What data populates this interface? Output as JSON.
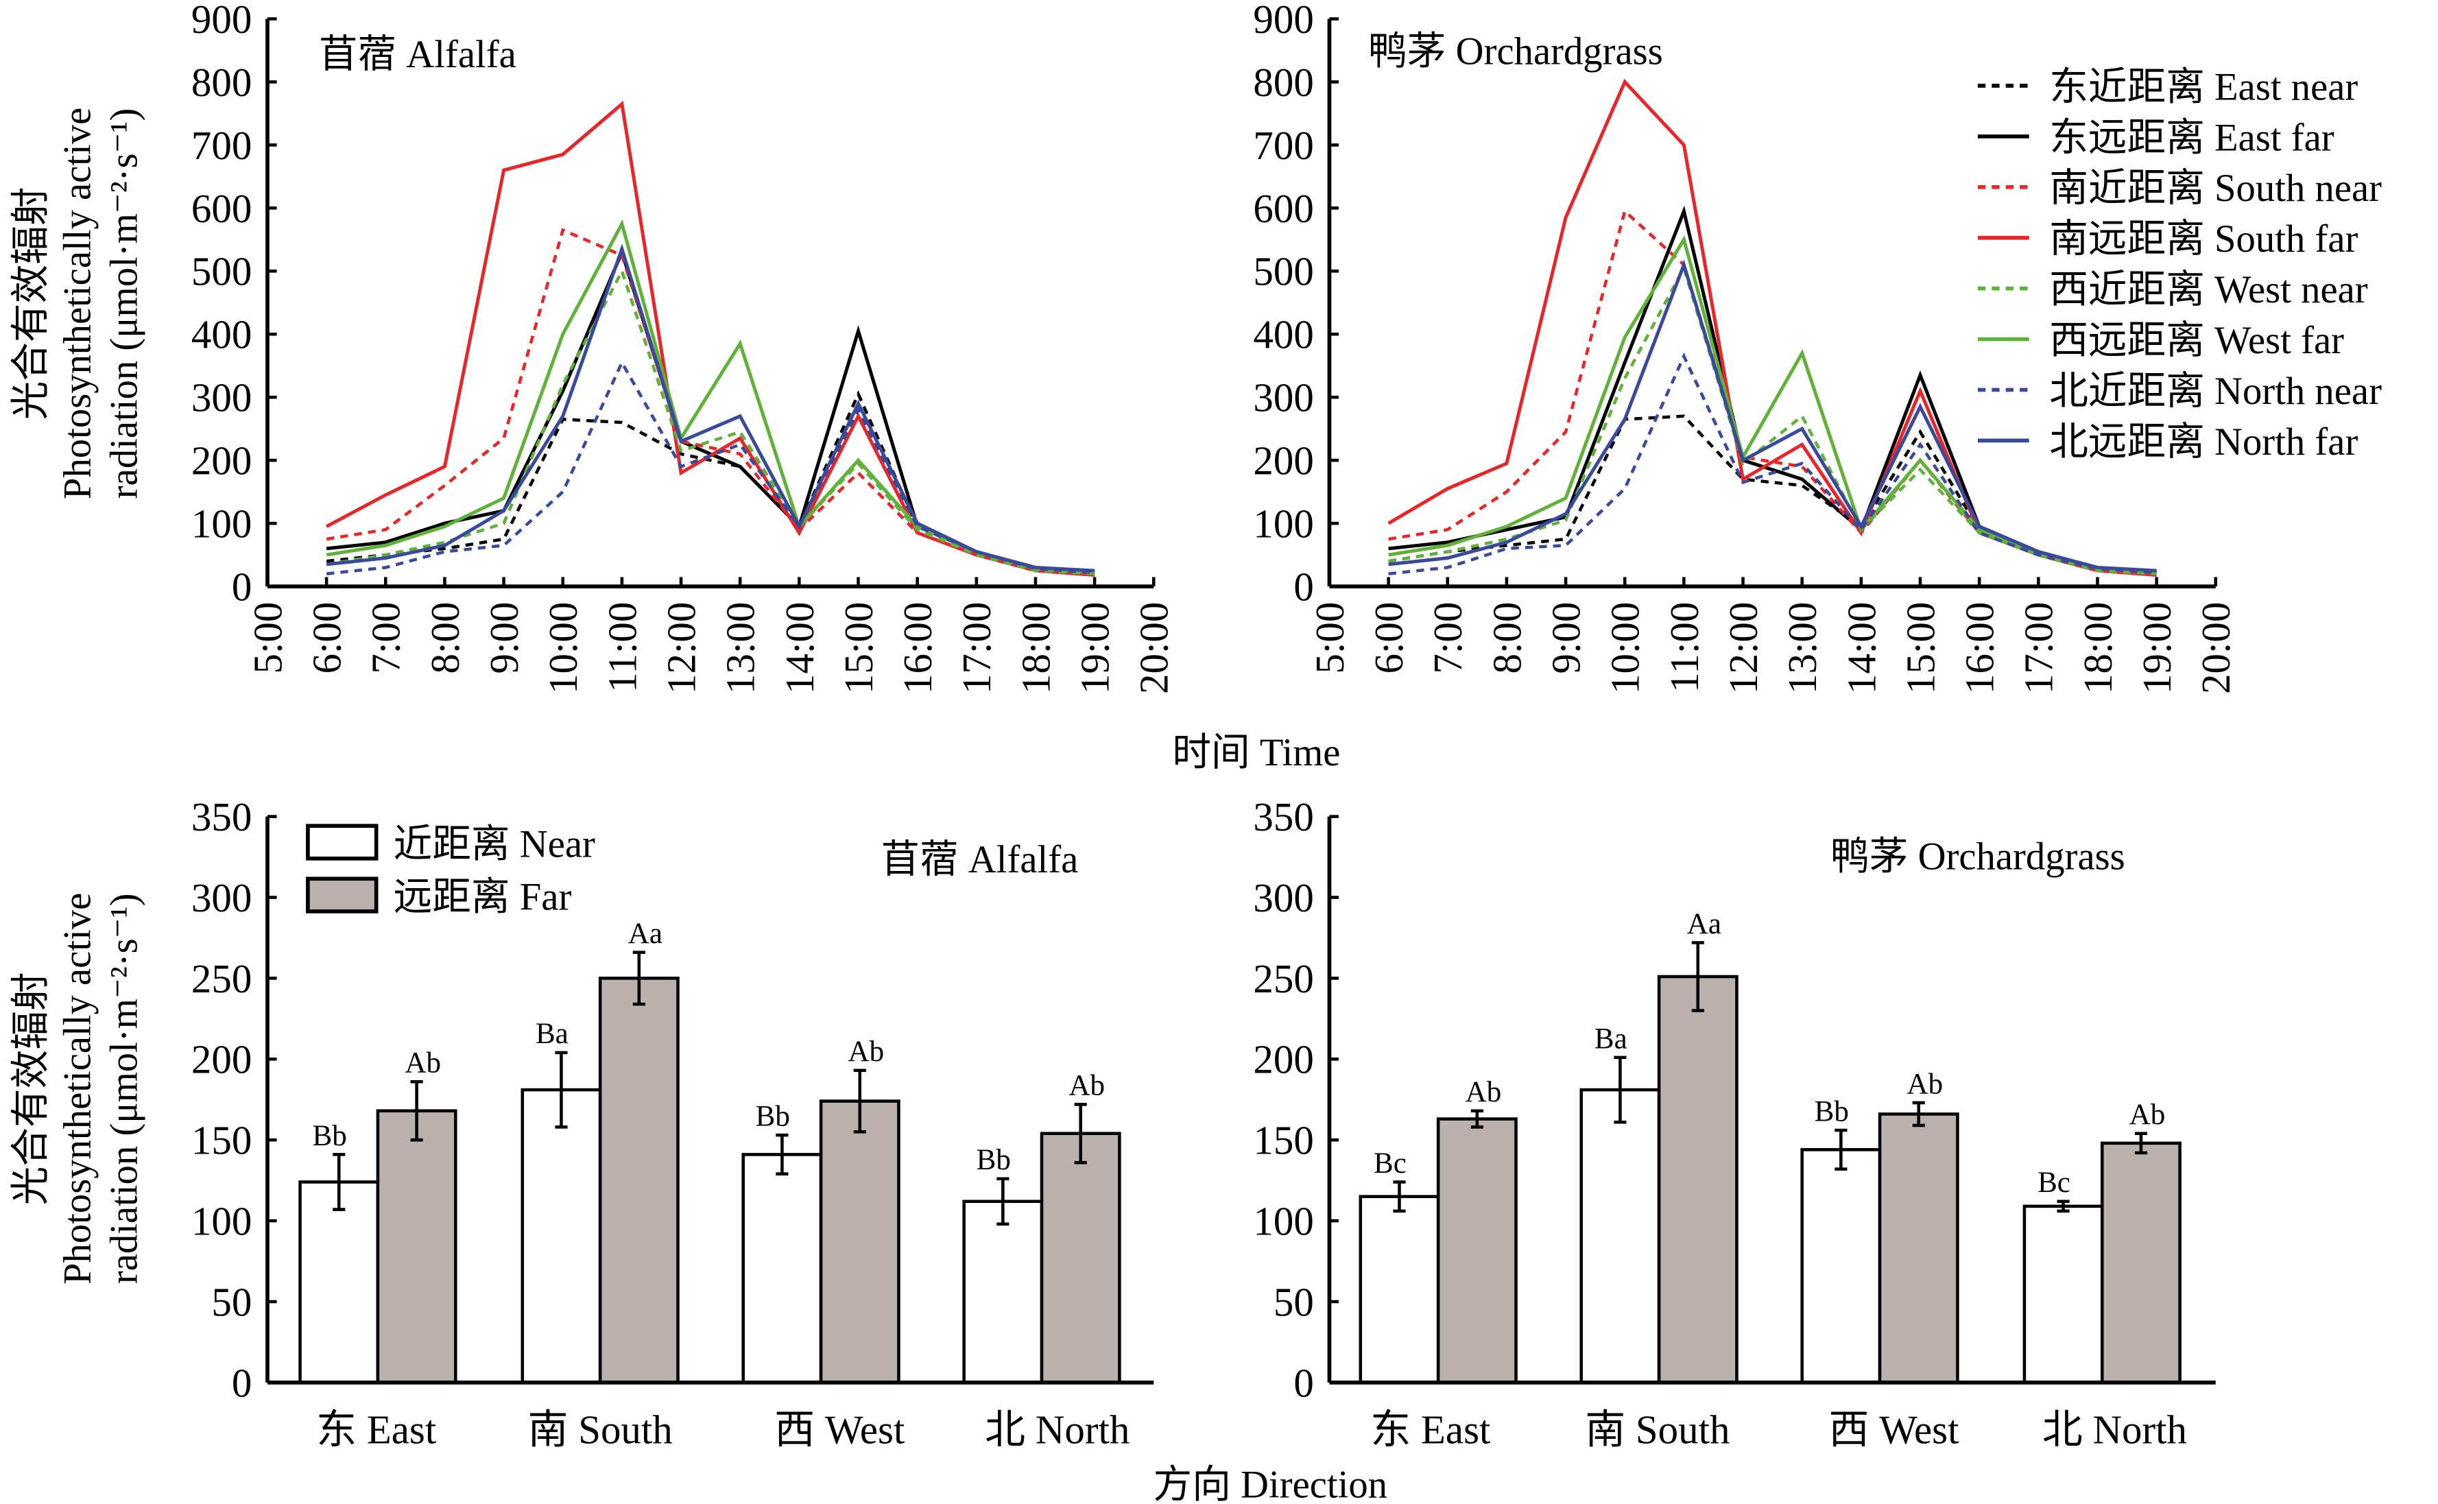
{
  "y_label_lines": [
    "光合有效辐射",
    "Photosynthetically active",
    "radiation (μmol·m⁻²·s⁻¹)"
  ],
  "x_label_top": "时间 Time",
  "x_label_bottom": "方向 Direction",
  "chart_data": [
    {
      "type": "line",
      "title": "苜蓿 Alfalfa",
      "x_ticks": [
        "5:00",
        "6:00",
        "7:00",
        "8:00",
        "9:00",
        "10:00",
        "11:00",
        "12:00",
        "13:00",
        "14:00",
        "15:00",
        "16:00",
        "17:00",
        "18:00",
        "19:00",
        "20:00"
      ],
      "x": [
        "6:00",
        "7:00",
        "8:00",
        "9:00",
        "10:00",
        "11:00",
        "12:00",
        "13:00",
        "14:00",
        "15:00",
        "16:00",
        "17:00",
        "18:00",
        "19:00"
      ],
      "ylim": [
        0,
        900
      ],
      "y_ticks": [
        0,
        100,
        200,
        300,
        400,
        500,
        600,
        700,
        800,
        900
      ],
      "series": [
        {
          "name": "东近距离 East near",
          "color": "#000000",
          "dash": true,
          "values": [
            40,
            50,
            60,
            75,
            265,
            260,
            210,
            190,
            95,
            305,
            95,
            55,
            28,
            22
          ]
        },
        {
          "name": "东远距离 East far",
          "color": "#000000",
          "dash": false,
          "values": [
            60,
            70,
            100,
            120,
            310,
            530,
            230,
            190,
            95,
            405,
            95,
            55,
            28,
            22
          ]
        },
        {
          "name": "南近距离 South near",
          "color": "#e8262a",
          "dash": true,
          "values": [
            75,
            90,
            160,
            235,
            565,
            525,
            230,
            210,
            90,
            180,
            85,
            50,
            25,
            18
          ]
        },
        {
          "name": "南远距离 South far",
          "color": "#e8262a",
          "dash": false,
          "values": [
            95,
            145,
            190,
            660,
            685,
            765,
            180,
            235,
            85,
            270,
            85,
            50,
            25,
            18
          ]
        },
        {
          "name": "西近距离 West near",
          "color": "#5fb13a",
          "dash": true,
          "values": [
            35,
            50,
            70,
            100,
            320,
            500,
            215,
            245,
            95,
            195,
            90,
            50,
            25,
            20
          ]
        },
        {
          "name": "西远距离 West far",
          "color": "#5fb13a",
          "dash": false,
          "values": [
            50,
            65,
            95,
            140,
            400,
            575,
            235,
            385,
            95,
            200,
            95,
            55,
            28,
            22
          ]
        },
        {
          "name": "北近距离 North near",
          "color": "#3a4a9a",
          "dash": true,
          "values": [
            20,
            30,
            55,
            65,
            150,
            355,
            190,
            225,
            95,
            280,
            95,
            55,
            28,
            22
          ]
        },
        {
          "name": "北远距离 North far",
          "color": "#3a4a9a",
          "dash": false,
          "values": [
            35,
            45,
            65,
            120,
            270,
            535,
            230,
            270,
            95,
            290,
            100,
            55,
            30,
            25
          ]
        }
      ]
    },
    {
      "type": "line",
      "title": "鸭茅 Orchardgrass",
      "legend": "top-right",
      "x_ticks": [
        "5:00",
        "6:00",
        "7:00",
        "8:00",
        "9:00",
        "10:00",
        "11:00",
        "12:00",
        "13:00",
        "14:00",
        "15:00",
        "16:00",
        "17:00",
        "18:00",
        "19:00",
        "20:00"
      ],
      "x": [
        "6:00",
        "7:00",
        "8:00",
        "9:00",
        "10:00",
        "11:00",
        "12:00",
        "13:00",
        "14:00",
        "15:00",
        "16:00",
        "17:00",
        "18:00",
        "19:00"
      ],
      "ylim": [
        0,
        900
      ],
      "y_ticks": [
        0,
        100,
        200,
        300,
        400,
        500,
        600,
        700,
        800,
        900
      ],
      "series": [
        {
          "name": "东近距离 East near",
          "color": "#000000",
          "dash": true,
          "values": [
            40,
            55,
            65,
            75,
            265,
            270,
            170,
            160,
            95,
            245,
            90,
            55,
            28,
            20
          ]
        },
        {
          "name": "东远距离 East far",
          "color": "#000000",
          "dash": false,
          "values": [
            60,
            70,
            90,
            110,
            355,
            595,
            200,
            170,
            90,
            335,
            95,
            55,
            28,
            22
          ]
        },
        {
          "name": "南近距离 South near",
          "color": "#e8262a",
          "dash": true,
          "values": [
            75,
            90,
            150,
            245,
            595,
            510,
            205,
            190,
            85,
            200,
            85,
            50,
            25,
            18
          ]
        },
        {
          "name": "南远距离 South far",
          "color": "#e8262a",
          "dash": false,
          "values": [
            100,
            155,
            195,
            585,
            800,
            700,
            170,
            225,
            85,
            310,
            85,
            50,
            25,
            18
          ]
        },
        {
          "name": "西近距离 West near",
          "color": "#5fb13a",
          "dash": true,
          "values": [
            40,
            55,
            75,
            105,
            330,
            505,
            195,
            270,
            90,
            185,
            85,
            50,
            25,
            20
          ]
        },
        {
          "name": "西远距离 West far",
          "color": "#5fb13a",
          "dash": false,
          "values": [
            50,
            65,
            95,
            140,
            395,
            550,
            205,
            370,
            90,
            200,
            90,
            55,
            28,
            22
          ]
        },
        {
          "name": "北近距离 North near",
          "color": "#3a4a9a",
          "dash": true,
          "values": [
            20,
            30,
            60,
            65,
            155,
            365,
            165,
            195,
            90,
            225,
            85,
            50,
            28,
            22
          ]
        },
        {
          "name": "北远距离 North far",
          "color": "#3a4a9a",
          "dash": false,
          "values": [
            35,
            45,
            70,
            115,
            265,
            510,
            200,
            250,
            95,
            285,
            95,
            55,
            30,
            25
          ]
        }
      ]
    },
    {
      "type": "bar",
      "title": "苜蓿 Alfalfa",
      "legend": "top-left",
      "categories": [
        "东 East",
        "南 South",
        "西 West",
        "北 North"
      ],
      "ylim": [
        0,
        350
      ],
      "y_ticks": [
        0,
        50,
        100,
        150,
        200,
        250,
        300,
        350
      ],
      "series": [
        {
          "name": "近距离 Near",
          "color": "#ffffff",
          "values": [
            124,
            181,
            141,
            112
          ],
          "errors": [
            17,
            23,
            12,
            14
          ],
          "labels": [
            "Bb",
            "Ba",
            "Bb",
            "Bb"
          ]
        },
        {
          "name": "远距离 Far",
          "color": "#bab1ad",
          "values": [
            168,
            250,
            174,
            154
          ],
          "errors": [
            18,
            16,
            19,
            18
          ],
          "labels": [
            "Ab",
            "Aa",
            "Ab",
            "Ab"
          ]
        }
      ]
    },
    {
      "type": "bar",
      "title": "鸭茅 Orchardgrass",
      "categories": [
        "东 East",
        "南 South",
        "西 West",
        "北 North"
      ],
      "ylim": [
        0,
        350
      ],
      "y_ticks": [
        0,
        50,
        100,
        150,
        200,
        250,
        300,
        350
      ],
      "series": [
        {
          "name": "近距离 Near",
          "color": "#ffffff",
          "values": [
            115,
            181,
            144,
            109
          ],
          "errors": [
            9,
            20,
            12,
            3
          ],
          "labels": [
            "Bc",
            "Ba",
            "Bb",
            "Bc"
          ]
        },
        {
          "name": "远距离 Far",
          "color": "#bab1ad",
          "values": [
            163,
            251,
            166,
            148
          ],
          "errors": [
            5,
            21,
            7,
            6
          ],
          "labels": [
            "Ab",
            "Aa",
            "Ab",
            "Ab"
          ]
        }
      ]
    }
  ]
}
